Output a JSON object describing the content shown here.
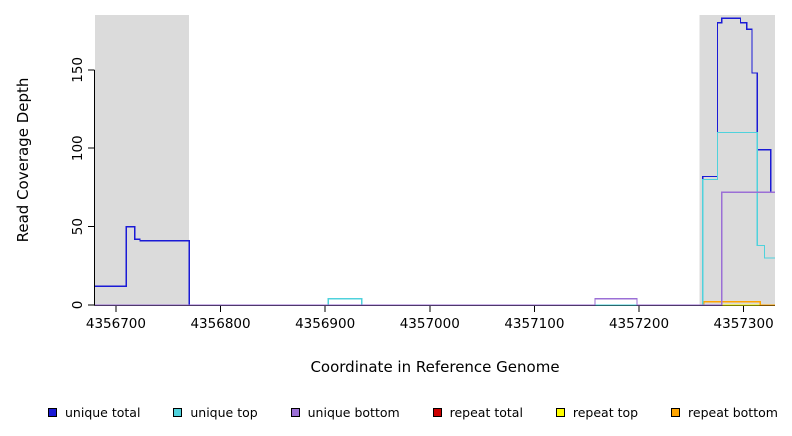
{
  "chart_data": {
    "type": "line",
    "subtype": "step-coverage",
    "title": "",
    "xlabel": "Coordinate in Reference Genome",
    "ylabel": "Read Coverage Depth",
    "xlim": [
      4356680,
      4357330
    ],
    "ylim": [
      0,
      185
    ],
    "xticks": [
      4356700,
      4356800,
      4356900,
      4357000,
      4357100,
      4357200,
      4357300
    ],
    "yticks": [
      0,
      50,
      100,
      150
    ],
    "grid": false,
    "legend_position": "bottom",
    "plot_bg": "#FFFFFF",
    "axis_color": "#000000",
    "text_color": "#000000",
    "line_width": 1.3,
    "shaded_color": "#DBDBDB",
    "shaded_regions": [
      [
        4356680,
        4356770
      ],
      [
        4357258,
        4357330
      ]
    ],
    "draw_order": [
      3,
      4,
      5,
      0,
      1,
      2
    ],
    "series": [
      {
        "name": "unique total",
        "color": "#1A1AD6",
        "points": [
          [
            4356680,
            12
          ],
          [
            4356710,
            12
          ],
          [
            4356710,
            50
          ],
          [
            4356718,
            50
          ],
          [
            4356718,
            42
          ],
          [
            4356723,
            42
          ],
          [
            4356723,
            41
          ],
          [
            4356770,
            41
          ],
          [
            4356770,
            0
          ],
          [
            4356903,
            0
          ],
          [
            4356903,
            4
          ],
          [
            4356935,
            4
          ],
          [
            4356935,
            0
          ],
          [
            4357158,
            0
          ],
          [
            4357158,
            4
          ],
          [
            4357198,
            4
          ],
          [
            4357198,
            0
          ],
          [
            4357261,
            0
          ],
          [
            4357261,
            82
          ],
          [
            4357275,
            82
          ],
          [
            4357275,
            180
          ],
          [
            4357279,
            180
          ],
          [
            4357279,
            183
          ],
          [
            4357297,
            183
          ],
          [
            4357297,
            180
          ],
          [
            4357303,
            180
          ],
          [
            4357303,
            176
          ],
          [
            4357308,
            176
          ],
          [
            4357308,
            148
          ],
          [
            4357313,
            148
          ],
          [
            4357313,
            99
          ],
          [
            4357326,
            99
          ],
          [
            4357326,
            72
          ],
          [
            4357330,
            72
          ]
        ]
      },
      {
        "name": "unique top",
        "color": "#4FD2DC",
        "points": [
          [
            4356680,
            0
          ],
          [
            4356903,
            0
          ],
          [
            4356903,
            4
          ],
          [
            4356935,
            4
          ],
          [
            4356935,
            0
          ],
          [
            4357261,
            0
          ],
          [
            4357261,
            80
          ],
          [
            4357275,
            80
          ],
          [
            4357275,
            110
          ],
          [
            4357313,
            110
          ],
          [
            4357313,
            38
          ],
          [
            4357320,
            38
          ],
          [
            4357320,
            30
          ],
          [
            4357330,
            30
          ]
        ]
      },
      {
        "name": "unique bottom",
        "color": "#9B6FD6",
        "points": [
          [
            4356680,
            0
          ],
          [
            4357158,
            0
          ],
          [
            4357158,
            4
          ],
          [
            4357198,
            4
          ],
          [
            4357198,
            0
          ],
          [
            4357279,
            0
          ],
          [
            4357279,
            72
          ],
          [
            4357330,
            72
          ]
        ]
      },
      {
        "name": "repeat total",
        "color": "#CC0000",
        "points": [
          [
            4356680,
            0
          ],
          [
            4357330,
            0
          ]
        ]
      },
      {
        "name": "repeat top",
        "color": "#FFFF00",
        "points": [
          [
            4356680,
            0
          ],
          [
            4357330,
            0
          ]
        ]
      },
      {
        "name": "repeat bottom",
        "color": "#FFA500",
        "points": [
          [
            4356680,
            0
          ],
          [
            4357262,
            0
          ],
          [
            4357262,
            2
          ],
          [
            4357316,
            2
          ],
          [
            4357316,
            0
          ],
          [
            4357330,
            0
          ]
        ]
      }
    ]
  }
}
